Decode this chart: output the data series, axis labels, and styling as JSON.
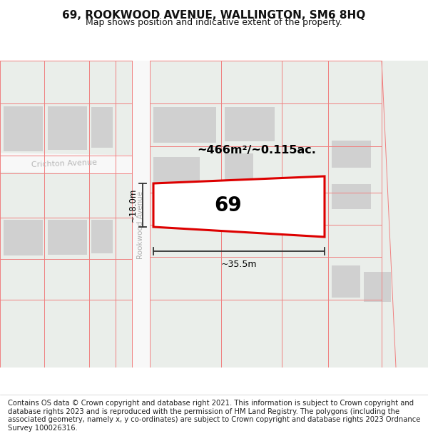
{
  "title": "69, ROOKWOOD AVENUE, WALLINGTON, SM6 8HQ",
  "subtitle": "Map shows position and indicative extent of the property.",
  "footer": "Contains OS data © Crown copyright and database right 2021. This information is subject to Crown copyright and database rights 2023 and is reproduced with the permission of HM Land Registry. The polygons (including the associated geometry, namely x, y co-ordinates) are subject to Crown copyright and database rights 2023 Ordnance Survey 100026316.",
  "bg_map_color": "#eaeeea",
  "road_color": "#f8f8f8",
  "block_color": "#d0d0d0",
  "block_edge_color": "#bbbbbb",
  "red_line_color": "#f08080",
  "red_plot_color": "#dd0000",
  "title_fontsize": 11,
  "subtitle_fontsize": 9,
  "footer_fontsize": 7.2,
  "area_text": "~466m²/~0.115ac.",
  "height_text": "~18.0m",
  "width_text": "~35.5m",
  "number_text": "69",
  "road_label_rookwood": "Rookwood Avenue",
  "road_label_crichton": "Crichton Avenue",
  "title_color": "#111111",
  "road_label_color": "#bbbbbb",
  "dim_color": "#333333"
}
